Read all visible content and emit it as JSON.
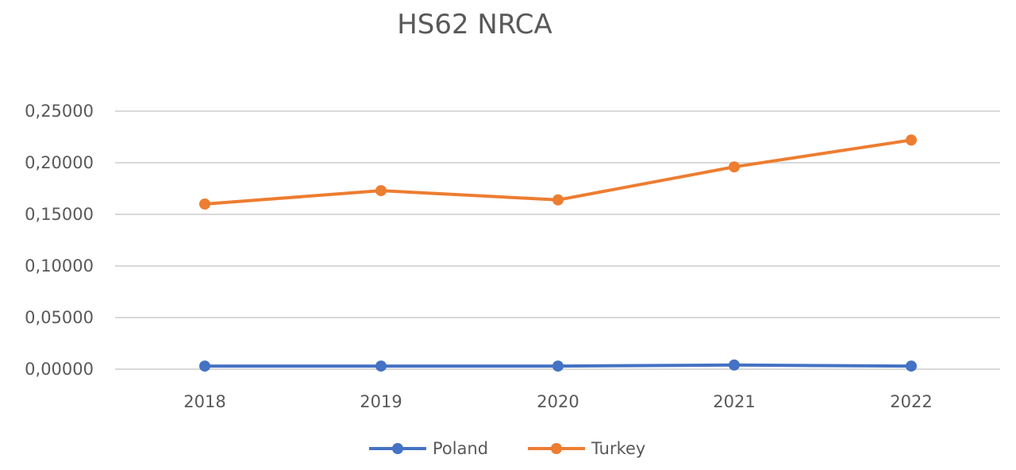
{
  "chart_data": {
    "type": "line",
    "title": "HS62 NRCA",
    "categories": [
      "2018",
      "2019",
      "2020",
      "2021",
      "2022"
    ],
    "ylim": [
      0,
      0.25
    ],
    "yticks": [
      "0,00000",
      "0,05000",
      "0,10000",
      "0,15000",
      "0,20000",
      "0,25000"
    ],
    "ytick_values": [
      0,
      0.05,
      0.1,
      0.15,
      0.2,
      0.25
    ],
    "grid": true,
    "legend_position": "bottom",
    "series": [
      {
        "name": "Poland",
        "color": "#4472c4",
        "values": [
          0.003,
          0.003,
          0.003,
          0.004,
          0.003
        ]
      },
      {
        "name": "Turkey",
        "color": "#ed7d31",
        "values": [
          0.16,
          0.173,
          0.164,
          0.196,
          0.222
        ]
      }
    ]
  }
}
